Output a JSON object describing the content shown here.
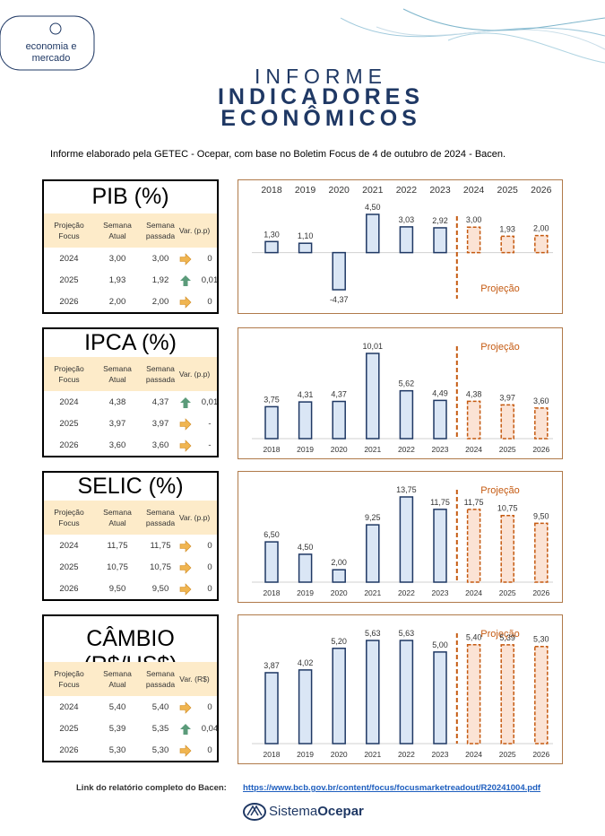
{
  "logo": {
    "line1": "economia e",
    "line2": "mercado"
  },
  "header": {
    "kicker": "INFORME",
    "title_line1": "INDICADORES",
    "title_line2": "ECONÔMICOS"
  },
  "intro": "Informe elaborado pela GETEC - Ocepar, com base no Boletim Focus de 4 de outubro de 2024 - Bacen.",
  "indicators": [
    {
      "title": "PIB (%)",
      "columns": [
        "Projeção Focus",
        "Semana Atual",
        "Semana passada",
        "Var. (p.p)"
      ],
      "rows": [
        [
          "2024",
          "3,00",
          "3,00",
          "0"
        ],
        [
          "2025",
          "1,93",
          "1,92",
          "0,01"
        ],
        [
          "2026",
          "2,00",
          "2,00",
          "0"
        ]
      ]
    },
    {
      "title": "IPCA (%)",
      "columns": [
        "Projeção Focus",
        "Semana Atual",
        "Semana passada",
        "Var. (p.p)"
      ],
      "rows": [
        [
          "2024",
          "4,38",
          "4,37",
          "0,01"
        ],
        [
          "2025",
          "3,97",
          "3,97",
          "-"
        ],
        [
          "2026",
          "3,60",
          "3,60",
          "-"
        ]
      ]
    },
    {
      "title": "SELIC (%)",
      "columns": [
        "Projeção Focus",
        "Semana Atual",
        "Semana passada",
        "Var. (p.p)"
      ],
      "rows": [
        [
          "2024",
          "11,75",
          "11,75",
          "0"
        ],
        [
          "2025",
          "10,75",
          "10,75",
          "0"
        ],
        [
          "2026",
          "9,50",
          "9,50",
          "0"
        ]
      ]
    },
    {
      "title": "CÂMBIO (R$/US$)",
      "columns": [
        "Projeção Focus",
        "Semana Atual",
        "Semana passada",
        "Var. (R$)"
      ],
      "rows": [
        [
          "2024",
          "5,40",
          "5,40",
          "0"
        ],
        [
          "2025",
          "5,39",
          "5,35",
          "0,04"
        ],
        [
          "2026",
          "5,30",
          "5,30",
          "0"
        ]
      ]
    }
  ],
  "chart_data": [
    {
      "type": "bar",
      "categories": [
        "2018",
        "2019",
        "2020",
        "2021",
        "2022",
        "2023",
        "2024",
        "2025",
        "2026"
      ],
      "values": [
        1.3,
        1.1,
        -4.37,
        4.5,
        3.03,
        2.92,
        3.0,
        1.93,
        2.0
      ],
      "value_labels": [
        "1,30",
        "1,10",
        "-4,37",
        "4,50",
        "3,03",
        "2,92",
        "3,00",
        "1,93",
        "2,00"
      ],
      "bar_styles": [
        "solid",
        "solid",
        "solid",
        "solid",
        "solid",
        "solid",
        "dashed",
        "dashed",
        "dashed"
      ],
      "annotation": "Projeção",
      "color": "#dae6f5",
      "edge_color": "#1f3864",
      "projection_color": "#fbe3d5",
      "projection_edge_color": "#c55a11"
    },
    {
      "type": "bar",
      "categories": [
        "2018",
        "2019",
        "2020",
        "2021",
        "2022",
        "2023",
        "2024",
        "2025",
        "2026"
      ],
      "values": [
        3.75,
        4.31,
        4.37,
        10.01,
        5.62,
        4.49,
        4.38,
        3.97,
        3.6
      ],
      "value_labels": [
        "3,75",
        "4,31",
        "4,37",
        "10,01",
        "5,62",
        "4,49",
        "4,38",
        "3,97",
        "3,60"
      ],
      "bar_styles": [
        "solid",
        "solid",
        "solid",
        "solid",
        "solid",
        "solid",
        "dashed",
        "dashed",
        "dashed"
      ],
      "annotation": "Projeção",
      "color": "#dae6f5",
      "edge_color": "#1f3864",
      "projection_color": "#fbe3d5",
      "projection_edge_color": "#c55a11"
    },
    {
      "type": "bar",
      "categories": [
        "2018",
        "2019",
        "2020",
        "2021",
        "2022",
        "2023",
        "2024",
        "2025",
        "2026"
      ],
      "values": [
        6.5,
        4.5,
        2.0,
        9.25,
        13.75,
        11.75,
        11.75,
        10.75,
        9.5
      ],
      "value_labels": [
        "6,50",
        "4,50",
        "2,00",
        "9,25",
        "13,75",
        "11,75",
        "11,75",
        "10,75",
        "9,50"
      ],
      "bar_styles": [
        "solid",
        "solid",
        "solid",
        "solid",
        "solid",
        "solid",
        "dashed",
        "dashed",
        "dashed"
      ],
      "annotation": "Projeção",
      "color": "#dae6f5",
      "edge_color": "#1f3864",
      "projection_color": "#fbe3d5",
      "projection_edge_color": "#c55a11"
    },
    {
      "type": "bar",
      "categories": [
        "2018",
        "2019",
        "2020",
        "2021",
        "2022",
        "2023",
        "2024",
        "2025",
        "2026"
      ],
      "values": [
        3.87,
        4.02,
        5.2,
        5.63,
        5.63,
        5.0,
        5.4,
        5.39,
        5.3
      ],
      "value_labels": [
        "3,87",
        "4,02",
        "5,20",
        "5,63",
        "5,63",
        "5,00",
        "5,40",
        "5,39",
        "5,30"
      ],
      "bar_styles": [
        "solid",
        "solid",
        "solid",
        "solid",
        "solid",
        "solid",
        "dashed",
        "dashed",
        "dashed"
      ],
      "annotation": "Projeção",
      "color": "#dae6f5",
      "edge_color": "#1f3864",
      "projection_color": "#fbe3d5",
      "projection_edge_color": "#c55a11"
    }
  ],
  "footer": {
    "link_label": "Link do relatório completo do Bacen:",
    "url": "https://www.bcb.gov.br/content/focus/focusmarketreadout/R20241004.pdf",
    "brand_prefix": "Sistema",
    "brand_name": "Ocepar"
  }
}
